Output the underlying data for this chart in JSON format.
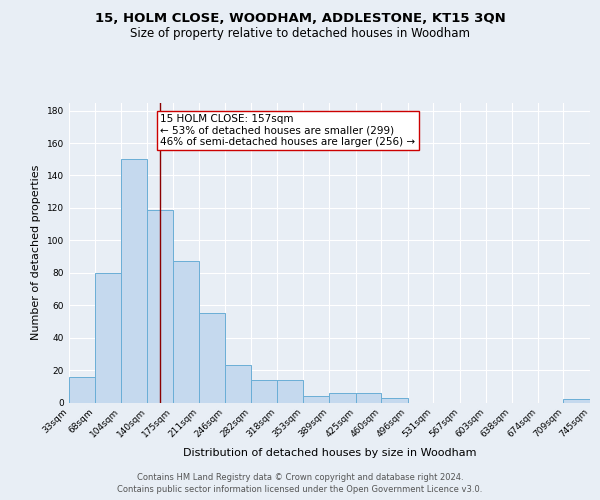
{
  "title_line1": "15, HOLM CLOSE, WOODHAM, ADDLESTONE, KT15 3QN",
  "title_line2": "Size of property relative to detached houses in Woodham",
  "xlabel": "Distribution of detached houses by size in Woodham",
  "ylabel": "Number of detached properties",
  "footer_line1": "Contains HM Land Registry data © Crown copyright and database right 2024.",
  "footer_line2": "Contains public sector information licensed under the Open Government Licence v3.0.",
  "bin_labels": [
    "33sqm",
    "68sqm",
    "104sqm",
    "140sqm",
    "175sqm",
    "211sqm",
    "246sqm",
    "282sqm",
    "318sqm",
    "353sqm",
    "389sqm",
    "425sqm",
    "460sqm",
    "496sqm",
    "531sqm",
    "567sqm",
    "603sqm",
    "638sqm",
    "674sqm",
    "709sqm",
    "745sqm"
  ],
  "bin_edges": [
    33,
    68,
    104,
    140,
    175,
    211,
    246,
    282,
    318,
    353,
    389,
    425,
    460,
    496,
    531,
    567,
    603,
    638,
    674,
    709,
    745
  ],
  "bar_heights": [
    16,
    80,
    150,
    119,
    87,
    55,
    23,
    14,
    14,
    4,
    6,
    6,
    3,
    0,
    0,
    0,
    0,
    0,
    0,
    2,
    0
  ],
  "bar_color": "#c5d9ee",
  "bar_edge_color": "#6aaed6",
  "vline_x": 157,
  "vline_color": "#8b0000",
  "annotation_text": "15 HOLM CLOSE: 157sqm\n← 53% of detached houses are smaller (299)\n46% of semi-detached houses are larger (256) →",
  "annotation_box_color": "white",
  "annotation_box_edge_color": "#cc0000",
  "ylim": [
    0,
    185
  ],
  "yticks": [
    0,
    20,
    40,
    60,
    80,
    100,
    120,
    140,
    160,
    180
  ],
  "background_color": "#e8eef5",
  "plot_bg_color": "#e8eef5",
  "grid_color": "white",
  "title_fontsize": 9.5,
  "subtitle_fontsize": 8.5,
  "axis_label_fontsize": 8,
  "tick_fontsize": 6.5,
  "annotation_fontsize": 7.5,
  "footer_fontsize": 6.0
}
